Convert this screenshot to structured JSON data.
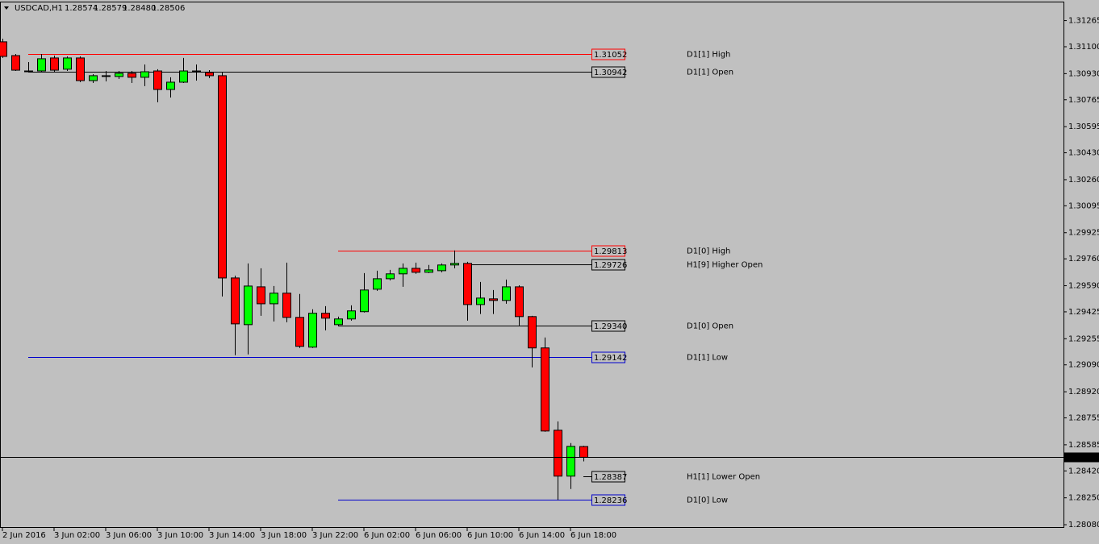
{
  "chart_data": {
    "type": "candlestick",
    "symbol": "USDCAD,H1",
    "header_labels": [
      "1.28574",
      "1.28579",
      "1.28480",
      "1.28506"
    ],
    "categories": [
      "2 Jun 2016",
      null,
      null,
      null,
      "3 Jun 02:00",
      null,
      null,
      null,
      "3 Jun 06:00",
      null,
      null,
      null,
      "3 Jun 10:00",
      null,
      null,
      null,
      "3 Jun 14:00",
      null,
      null,
      null,
      "3 Jun 18:00",
      null,
      null,
      null,
      "3 Jun 22:00",
      null,
      null,
      null,
      "6 Jun 02:00",
      null,
      null,
      null,
      "6 Jun 06:00",
      null,
      null,
      null,
      "6 Jun 10:00",
      null,
      null,
      null,
      "6 Jun 14:00",
      null,
      null,
      null,
      "6 Jun 18:00",
      null
    ],
    "open": [
      1.31131,
      1.31044,
      1.30942,
      1.30947,
      1.31029,
      1.30958,
      1.31029,
      1.30886,
      1.30912,
      1.30912,
      1.30932,
      1.30907,
      1.30947,
      1.3083,
      1.30876,
      1.30942,
      1.30937,
      1.30917,
      1.29639,
      1.29344,
      1.29583,
      1.29476,
      1.29543,
      1.2939,
      1.29202,
      1.29416,
      1.29344,
      1.2938,
      1.29426,
      1.29568,
      1.29634,
      1.29665,
      1.297,
      1.29675,
      1.29685,
      1.29721,
      1.29731,
      1.29471,
      1.29507,
      1.29497,
      1.29583,
      1.29395,
      1.29197,
      1.28677,
      1.28387,
      1.28574
    ],
    "high": [
      1.31151,
      1.31054,
      1.31003,
      1.31054,
      1.31044,
      1.31039,
      1.31039,
      1.30927,
      1.30947,
      1.30947,
      1.30947,
      1.30988,
      1.30958,
      1.30907,
      1.31029,
      1.30988,
      1.30952,
      1.30942,
      1.29654,
      1.29731,
      1.297,
      1.29588,
      1.29736,
      1.29538,
      1.29441,
      1.29461,
      1.29395,
      1.29466,
      1.2967,
      1.29685,
      1.2969,
      1.29731,
      1.29736,
      1.29721,
      1.29731,
      1.29813,
      1.29741,
      1.29614,
      1.29563,
      1.29629,
      1.29593,
      1.294,
      1.29263,
      1.28733,
      1.28596,
      1.28579
    ],
    "low": [
      1.31029,
      1.30947,
      1.30937,
      1.30937,
      1.30942,
      1.30947,
      1.30876,
      1.30871,
      1.30881,
      1.30896,
      1.30871,
      1.30851,
      1.30749,
      1.30779,
      1.30871,
      1.30886,
      1.30902,
      1.29522,
      1.29151,
      1.29156,
      1.294,
      1.29364,
      1.29359,
      1.29197,
      1.29197,
      1.29308,
      1.29334,
      1.29369,
      1.29421,
      1.29558,
      1.29624,
      1.29583,
      1.29665,
      1.2967,
      1.29675,
      1.297,
      1.29369,
      1.29411,
      1.29411,
      1.29476,
      1.29339,
      1.29074,
      1.28667,
      1.28236,
      1.28306,
      1.2848
    ],
    "close": [
      1.31039,
      1.30952,
      1.30947,
      1.31024,
      1.30952,
      1.31029,
      1.30886,
      1.30917,
      1.30917,
      1.30932,
      1.30907,
      1.30942,
      1.3083,
      1.30876,
      1.30947,
      1.30947,
      1.30917,
      1.29639,
      1.29349,
      1.29588,
      1.29476,
      1.29543,
      1.2939,
      1.29207,
      1.29416,
      1.29385,
      1.2938,
      1.29431,
      1.29563,
      1.29634,
      1.29665,
      1.297,
      1.29675,
      1.2969,
      1.29721,
      1.29731,
      1.29471,
      1.29512,
      1.29497,
      1.29583,
      1.29395,
      1.29197,
      1.28672,
      1.28387,
      1.28575,
      1.28506
    ],
    "up_color": "#00ff00",
    "down_color": "#ff0000",
    "levels": {
      "names": [
        "D1[1] High",
        "D1[1] Open",
        "D1[0] High",
        "H1[9] Higher Open",
        "D1[0] Open",
        "D1[1] Low",
        "H1[1] Lower Open",
        "D1[0] Low"
      ],
      "values": [
        1.31052,
        1.30942,
        1.29813,
        1.29726,
        1.2934,
        1.29142,
        1.28387,
        1.28236
      ],
      "value_labels": [
        "1.31052",
        "1.30942",
        "1.29813",
        "1.29726",
        "1.29340",
        "1.29142",
        "1.28387",
        "1.28236"
      ],
      "colors": [
        "#ff0000",
        "#000000",
        "#ff0000",
        "#000000",
        "#000000",
        "#0000cc",
        "#000000",
        "#0000cc"
      ]
    },
    "ylim": [
      1.2806,
      1.3138
    ],
    "yticks": [
      1.31265,
      {
        "value": 1.311,
        "label": "1.31100"
      },
      {
        "value": 1.3093,
        "label": "1.30930"
      },
      1.30765,
      1.30595,
      {
        "value": 1.3043,
        "label": "1.30430"
      },
      {
        "value": 1.3026,
        "label": "1.30260"
      },
      1.30095,
      1.29925,
      {
        "value": 1.2976,
        "label": "1.29760"
      },
      {
        "value": 1.2959,
        "label": "1.29590"
      },
      1.29425,
      1.29255,
      {
        "value": 1.2909,
        "label": "1.29090"
      },
      {
        "value": 1.2892,
        "label": "1.28920"
      },
      1.28755,
      1.28585,
      {
        "value": 1.2842,
        "label": "1.28420"
      },
      {
        "value": 1.2825,
        "label": "1.28250"
      },
      {
        "value": 1.2808,
        "label": "1.28080"
      }
    ]
  }
}
